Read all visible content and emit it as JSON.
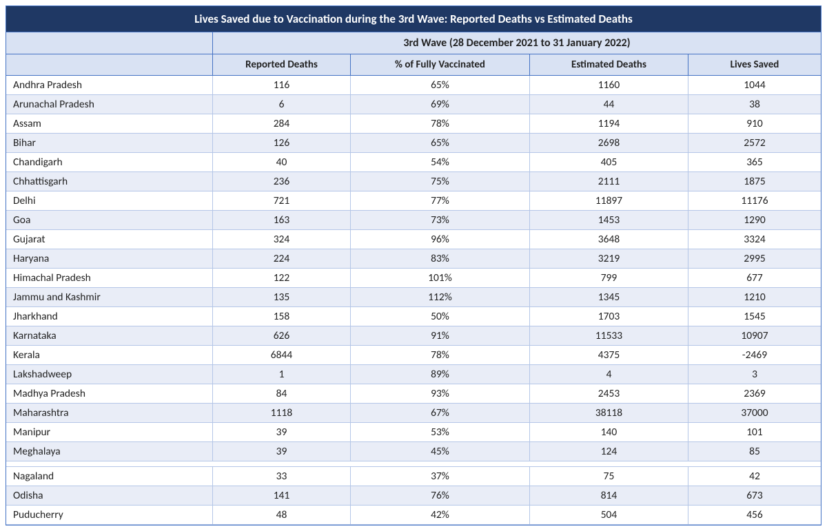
{
  "title": "Lives Saved due to Vaccination during the 3rd Wave: Reported Deaths vs Estimated Deaths",
  "period_header": "3rd Wave (28 December 2021 to 31 January 2022)",
  "columns": {
    "c1": "Reported Deaths",
    "c2": "% of Fully Vaccinated",
    "c3": "Estimated Deaths",
    "c4": "Lives Saved"
  },
  "colors": {
    "title_bg": "#1f3864",
    "header_bg": "#d9e2f3",
    "border": "#4472c4",
    "row_border": "#b4c6e7",
    "odd_row": "#e9edf7",
    "even_row": "#ffffff",
    "text": "#222222",
    "title_text": "#ffffff"
  },
  "rows": [
    {
      "state": "Andhra Pradesh",
      "reported": "116",
      "pct": "65%",
      "est": "1160",
      "saved": "1044"
    },
    {
      "state": "Arunachal Pradesh",
      "reported": "6",
      "pct": "69%",
      "est": "44",
      "saved": "38"
    },
    {
      "state": "Assam",
      "reported": "284",
      "pct": "78%",
      "est": "1194",
      "saved": "910"
    },
    {
      "state": "Bihar",
      "reported": "126",
      "pct": "65%",
      "est": "2698",
      "saved": "2572"
    },
    {
      "state": "Chandigarh",
      "reported": "40",
      "pct": "54%",
      "est": "405",
      "saved": "365"
    },
    {
      "state": "Chhattisgarh",
      "reported": "236",
      "pct": "75%",
      "est": "2111",
      "saved": "1875"
    },
    {
      "state": "Delhi",
      "reported": "721",
      "pct": "77%",
      "est": "11897",
      "saved": "11176"
    },
    {
      "state": "Goa",
      "reported": "163",
      "pct": "73%",
      "est": "1453",
      "saved": "1290"
    },
    {
      "state": "Gujarat",
      "reported": "324",
      "pct": "96%",
      "est": "3648",
      "saved": "3324"
    },
    {
      "state": "Haryana",
      "reported": "224",
      "pct": "83%",
      "est": "3219",
      "saved": "2995"
    },
    {
      "state": "Himachal Pradesh",
      "reported": "122",
      "pct": "101%",
      "est": "799",
      "saved": "677"
    },
    {
      "state": "Jammu and Kashmir",
      "reported": "135",
      "pct": "112%",
      "est": "1345",
      "saved": "1210"
    },
    {
      "state": "Jharkhand",
      "reported": "158",
      "pct": "50%",
      "est": "1703",
      "saved": "1545"
    },
    {
      "state": "Karnataka",
      "reported": "626",
      "pct": "91%",
      "est": "11533",
      "saved": "10907"
    },
    {
      "state": "Kerala",
      "reported": "6844",
      "pct": "78%",
      "est": "4375",
      "saved": "-2469"
    },
    {
      "state": "Lakshadweep",
      "reported": "1",
      "pct": "89%",
      "est": "4",
      "saved": "3"
    },
    {
      "state": "Madhya Pradesh",
      "reported": "84",
      "pct": "93%",
      "est": "2453",
      "saved": "2369"
    },
    {
      "state": "Maharashtra",
      "reported": "1118",
      "pct": "67%",
      "est": "38118",
      "saved": "37000"
    },
    {
      "state": "Manipur",
      "reported": "39",
      "pct": "53%",
      "est": "140",
      "saved": "101"
    },
    {
      "state": "Meghalaya",
      "reported": "39",
      "pct": "45%",
      "est": "124",
      "saved": "85"
    }
  ],
  "rows_after_gap": [
    {
      "state": "Nagaland",
      "reported": "33",
      "pct": "37%",
      "est": "75",
      "saved": "42"
    },
    {
      "state": "Odisha",
      "reported": "141",
      "pct": "76%",
      "est": "814",
      "saved": "673"
    },
    {
      "state": "Puducherry",
      "reported": "48",
      "pct": "42%",
      "est": "504",
      "saved": "456"
    }
  ]
}
